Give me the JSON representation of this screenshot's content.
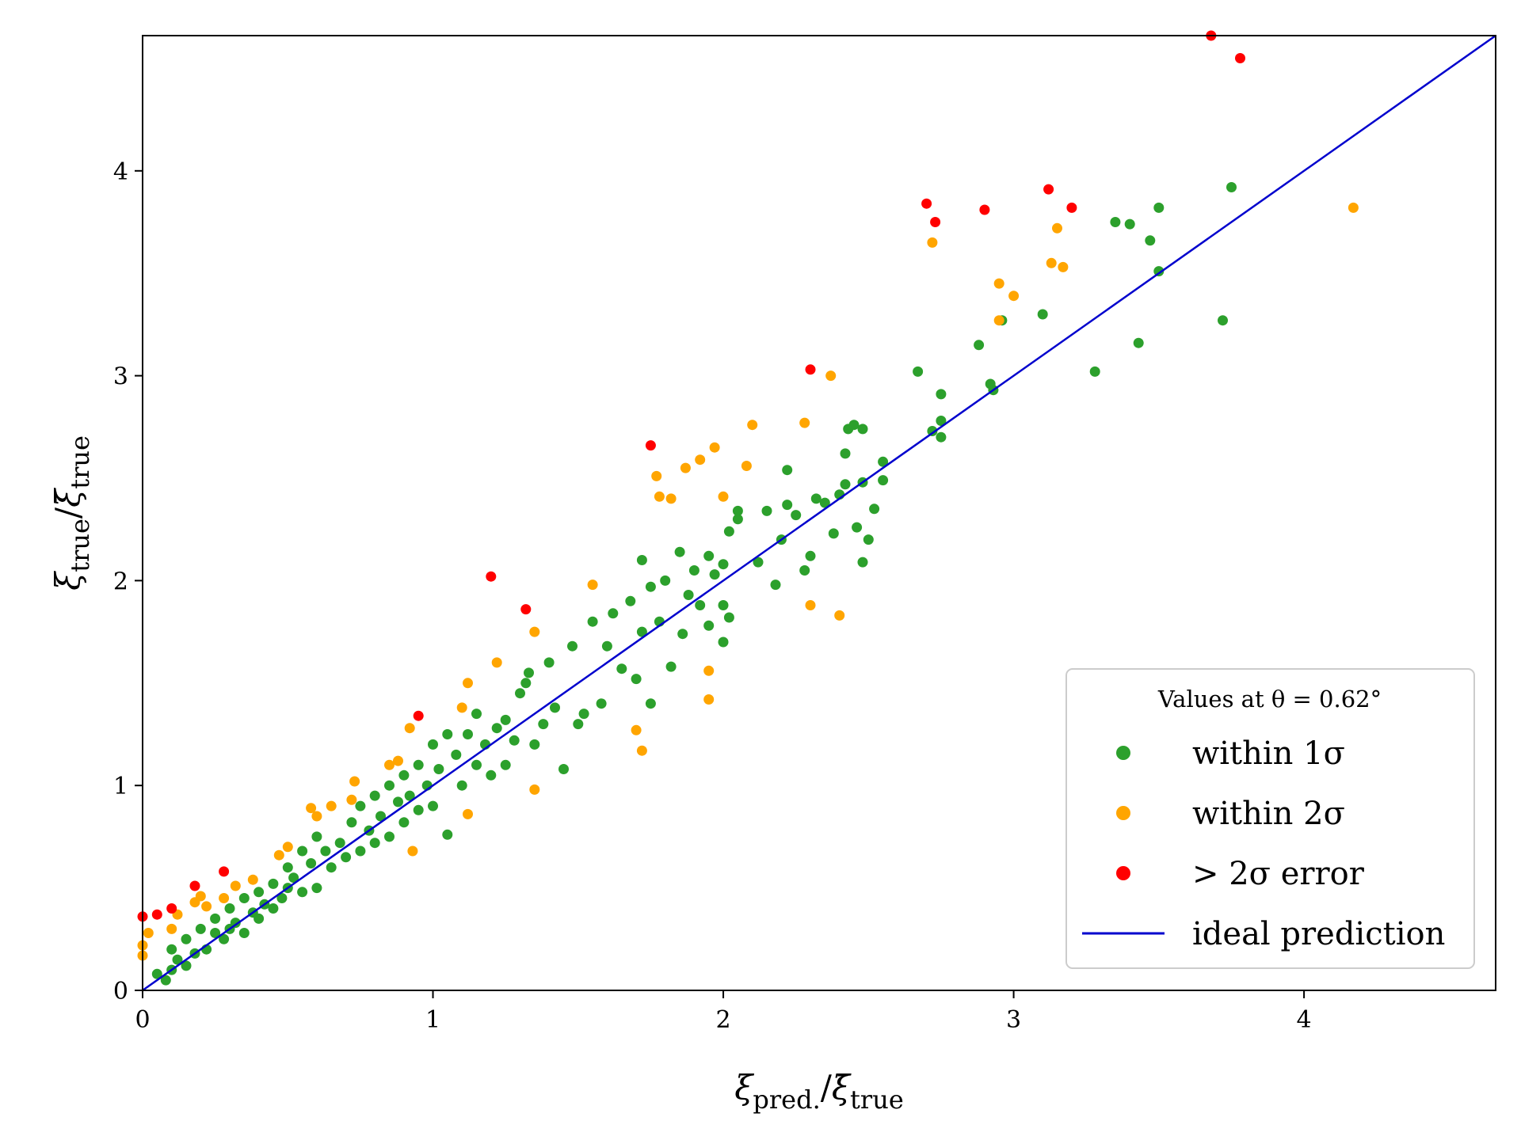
{
  "chart_data": {
    "type": "scatter",
    "xlabel_main": "ξ",
    "xlabel_sub": "pred.",
    "xlabel_denom_main": "ξ̄",
    "xlabel_denom_sub": "true",
    "ylabel_main": "ξ",
    "ylabel_sub": "true",
    "ylabel_denom_main": "ξ̄",
    "ylabel_denom_sub": "true",
    "xlim": [
      0,
      4.66
    ],
    "ylim": [
      0,
      4.66
    ],
    "xticks": [
      0,
      1,
      2,
      3,
      4
    ],
    "yticks": [
      0,
      1,
      2,
      3,
      4
    ],
    "grid": false,
    "legend": {
      "title": "Values at θ = 0.62°",
      "placement": "lower-right",
      "entries": [
        {
          "label": "within 1σ",
          "color": "#2ca02c",
          "marker": "dot"
        },
        {
          "label": "within 2σ",
          "color": "#ffa500",
          "marker": "dot"
        },
        {
          "label": "> 2σ error",
          "color": "#ff0000",
          "marker": "dot"
        },
        {
          "label": "ideal prediction",
          "color": "#0000cd",
          "marker": "line"
        }
      ]
    },
    "line": {
      "name": "ideal prediction",
      "color": "#0000cd",
      "x": [
        0,
        4.66
      ],
      "y": [
        0,
        4.66
      ]
    },
    "series": [
      {
        "name": "within 1σ",
        "color": "#2ca02c",
        "points": [
          [
            0.05,
            0.08
          ],
          [
            0.08,
            0.05
          ],
          [
            0.1,
            0.1
          ],
          [
            0.12,
            0.15
          ],
          [
            0.1,
            0.2
          ],
          [
            0.15,
            0.12
          ],
          [
            0.15,
            0.25
          ],
          [
            0.18,
            0.18
          ],
          [
            0.2,
            0.3
          ],
          [
            0.22,
            0.2
          ],
          [
            0.25,
            0.28
          ],
          [
            0.25,
            0.35
          ],
          [
            0.28,
            0.25
          ],
          [
            0.3,
            0.3
          ],
          [
            0.3,
            0.4
          ],
          [
            0.32,
            0.33
          ],
          [
            0.35,
            0.28
          ],
          [
            0.35,
            0.45
          ],
          [
            0.38,
            0.38
          ],
          [
            0.4,
            0.35
          ],
          [
            0.4,
            0.48
          ],
          [
            0.42,
            0.42
          ],
          [
            0.45,
            0.4
          ],
          [
            0.45,
            0.52
          ],
          [
            0.48,
            0.45
          ],
          [
            0.5,
            0.6
          ],
          [
            0.5,
            0.5
          ],
          [
            0.52,
            0.55
          ],
          [
            0.55,
            0.48
          ],
          [
            0.55,
            0.68
          ],
          [
            0.58,
            0.62
          ],
          [
            0.6,
            0.5
          ],
          [
            0.6,
            0.75
          ],
          [
            0.63,
            0.68
          ],
          [
            0.65,
            0.6
          ],
          [
            0.68,
            0.72
          ],
          [
            0.7,
            0.65
          ],
          [
            0.72,
            0.82
          ],
          [
            0.75,
            0.68
          ],
          [
            0.75,
            0.9
          ],
          [
            0.78,
            0.78
          ],
          [
            0.8,
            0.72
          ],
          [
            0.8,
            0.95
          ],
          [
            0.82,
            0.85
          ],
          [
            0.85,
            0.75
          ],
          [
            0.85,
            1.0
          ],
          [
            0.88,
            0.92
          ],
          [
            0.9,
            0.82
          ],
          [
            0.9,
            1.05
          ],
          [
            0.92,
            0.95
          ],
          [
            0.95,
            0.88
          ],
          [
            0.95,
            1.1
          ],
          [
            0.98,
            1.0
          ],
          [
            1.0,
            0.9
          ],
          [
            1.0,
            1.2
          ],
          [
            1.02,
            1.08
          ],
          [
            1.05,
            0.76
          ],
          [
            1.05,
            1.25
          ],
          [
            1.08,
            1.15
          ],
          [
            1.1,
            1.0
          ],
          [
            1.12,
            1.25
          ],
          [
            1.15,
            1.1
          ],
          [
            1.15,
            1.35
          ],
          [
            1.18,
            1.2
          ],
          [
            1.2,
            1.05
          ],
          [
            1.22,
            1.28
          ],
          [
            1.25,
            1.1
          ],
          [
            1.25,
            1.32
          ],
          [
            1.28,
            1.22
          ],
          [
            1.3,
            1.45
          ],
          [
            1.32,
            1.5
          ],
          [
            1.33,
            1.55
          ],
          [
            1.35,
            1.2
          ],
          [
            1.38,
            1.3
          ],
          [
            1.4,
            1.6
          ],
          [
            1.42,
            1.38
          ],
          [
            1.45,
            1.08
          ],
          [
            1.48,
            1.68
          ],
          [
            1.5,
            1.3
          ],
          [
            1.52,
            1.35
          ],
          [
            1.55,
            1.8
          ],
          [
            1.58,
            1.4
          ],
          [
            1.6,
            1.68
          ],
          [
            1.62,
            1.84
          ],
          [
            1.65,
            1.57
          ],
          [
            1.68,
            1.9
          ],
          [
            1.7,
            1.52
          ],
          [
            1.72,
            1.75
          ],
          [
            1.72,
            2.1
          ],
          [
            1.75,
            1.4
          ],
          [
            1.75,
            1.97
          ],
          [
            1.78,
            1.8
          ],
          [
            1.8,
            2.0
          ],
          [
            1.82,
            1.58
          ],
          [
            1.85,
            2.14
          ],
          [
            1.86,
            1.74
          ],
          [
            1.88,
            1.93
          ],
          [
            1.9,
            2.05
          ],
          [
            1.92,
            1.88
          ],
          [
            1.95,
            1.78
          ],
          [
            1.95,
            2.12
          ],
          [
            1.97,
            2.03
          ],
          [
            2.0,
            1.88
          ],
          [
            2.0,
            2.08
          ],
          [
            2.0,
            1.7
          ],
          [
            2.02,
            2.24
          ],
          [
            2.02,
            1.82
          ],
          [
            2.05,
            2.3
          ],
          [
            2.05,
            2.34
          ],
          [
            2.12,
            2.09
          ],
          [
            2.15,
            2.34
          ],
          [
            2.18,
            1.98
          ],
          [
            2.2,
            2.2
          ],
          [
            2.22,
            2.37
          ],
          [
            2.22,
            2.54
          ],
          [
            2.25,
            2.32
          ],
          [
            2.28,
            2.05
          ],
          [
            2.3,
            2.12
          ],
          [
            2.32,
            2.4
          ],
          [
            2.35,
            2.38
          ],
          [
            2.38,
            2.23
          ],
          [
            2.4,
            2.42
          ],
          [
            2.42,
            2.62
          ],
          [
            2.42,
            2.47
          ],
          [
            2.43,
            2.74
          ],
          [
            2.45,
            2.76
          ],
          [
            2.46,
            2.26
          ],
          [
            2.48,
            2.48
          ],
          [
            2.48,
            2.74
          ],
          [
            2.48,
            2.09
          ],
          [
            2.5,
            2.2
          ],
          [
            2.52,
            2.35
          ],
          [
            2.55,
            2.58
          ],
          [
            2.55,
            2.49
          ],
          [
            2.67,
            3.02
          ],
          [
            2.72,
            2.73
          ],
          [
            2.75,
            2.78
          ],
          [
            2.75,
            2.91
          ],
          [
            2.75,
            2.7
          ],
          [
            2.88,
            3.15
          ],
          [
            2.92,
            2.96
          ],
          [
            2.93,
            2.93
          ],
          [
            2.96,
            3.27
          ],
          [
            3.1,
            3.3
          ],
          [
            3.28,
            3.02
          ],
          [
            3.35,
            3.75
          ],
          [
            3.4,
            3.74
          ],
          [
            3.43,
            3.16
          ],
          [
            3.47,
            3.66
          ],
          [
            3.5,
            3.82
          ],
          [
            3.5,
            3.51
          ],
          [
            3.72,
            3.27
          ],
          [
            3.75,
            3.92
          ]
        ]
      },
      {
        "name": "within 2σ",
        "color": "#ffa500",
        "points": [
          [
            0.0,
            0.17
          ],
          [
            0.0,
            0.22
          ],
          [
            0.02,
            0.28
          ],
          [
            0.1,
            0.3
          ],
          [
            0.12,
            0.37
          ],
          [
            0.18,
            0.43
          ],
          [
            0.2,
            0.46
          ],
          [
            0.22,
            0.41
          ],
          [
            0.28,
            0.45
          ],
          [
            0.32,
            0.51
          ],
          [
            0.38,
            0.54
          ],
          [
            0.47,
            0.66
          ],
          [
            0.5,
            0.7
          ],
          [
            0.58,
            0.89
          ],
          [
            0.6,
            0.85
          ],
          [
            0.65,
            0.9
          ],
          [
            0.73,
            1.02
          ],
          [
            0.72,
            0.93
          ],
          [
            0.85,
            1.1
          ],
          [
            0.88,
            1.12
          ],
          [
            0.92,
            1.28
          ],
          [
            0.93,
            0.68
          ],
          [
            1.1,
            1.38
          ],
          [
            1.12,
            1.5
          ],
          [
            1.12,
            0.86
          ],
          [
            1.22,
            1.6
          ],
          [
            1.35,
            1.75
          ],
          [
            1.35,
            0.98
          ],
          [
            1.55,
            1.98
          ],
          [
            1.7,
            1.27
          ],
          [
            1.72,
            1.17
          ],
          [
            1.77,
            2.51
          ],
          [
            1.78,
            2.41
          ],
          [
            1.82,
            2.4
          ],
          [
            1.87,
            2.55
          ],
          [
            1.92,
            2.59
          ],
          [
            1.95,
            1.56
          ],
          [
            1.95,
            1.42
          ],
          [
            1.97,
            2.65
          ],
          [
            2.0,
            2.41
          ],
          [
            2.08,
            2.56
          ],
          [
            2.1,
            2.76
          ],
          [
            2.3,
            1.88
          ],
          [
            2.28,
            2.77
          ],
          [
            2.37,
            3.0
          ],
          [
            2.4,
            1.83
          ],
          [
            2.72,
            3.65
          ],
          [
            2.95,
            3.27
          ],
          [
            2.95,
            3.45
          ],
          [
            3.0,
            3.39
          ],
          [
            3.13,
            3.55
          ],
          [
            3.15,
            3.72
          ],
          [
            3.17,
            3.53
          ],
          [
            4.17,
            3.82
          ]
        ]
      },
      {
        "name": "> 2σ error",
        "color": "#ff0000",
        "points": [
          [
            0.0,
            0.36
          ],
          [
            0.05,
            0.37
          ],
          [
            0.1,
            0.4
          ],
          [
            0.18,
            0.51
          ],
          [
            0.28,
            0.58
          ],
          [
            0.95,
            1.34
          ],
          [
            1.2,
            2.02
          ],
          [
            1.32,
            1.86
          ],
          [
            1.75,
            2.66
          ],
          [
            2.3,
            3.03
          ],
          [
            2.7,
            3.84
          ],
          [
            2.73,
            3.75
          ],
          [
            2.9,
            3.81
          ],
          [
            3.12,
            3.91
          ],
          [
            3.2,
            3.82
          ],
          [
            3.68,
            4.66
          ],
          [
            3.78,
            4.55
          ]
        ]
      }
    ]
  }
}
